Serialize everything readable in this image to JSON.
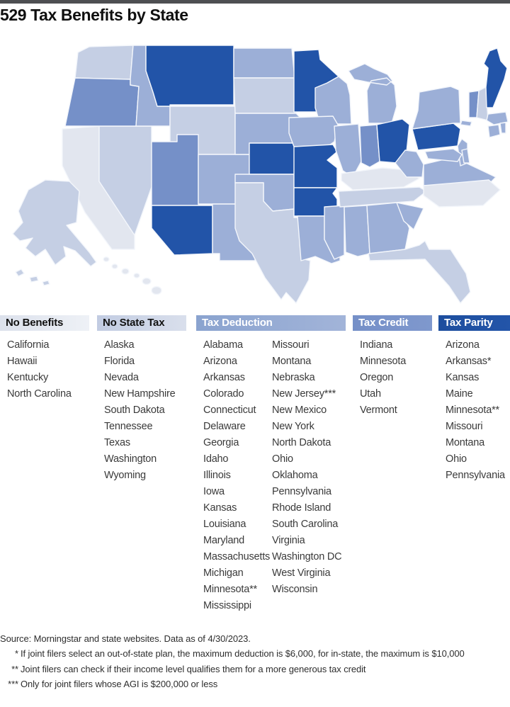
{
  "title": "529 Tax Benefits by State",
  "legend_columns": [
    {
      "key": "no_benefits",
      "label": "No Benefits",
      "header_bg": "#dce1ec",
      "header_bg2": "#eef1f6",
      "header_text": "#111111",
      "states": [
        "California",
        "Hawaii",
        "Kentucky",
        "North Carolina"
      ]
    },
    {
      "key": "no_state_tax",
      "label": "No State Tax",
      "header_bg": "#c2cce2",
      "header_bg2": "#d9dfec",
      "header_text": "#111111",
      "states": [
        "Alaska",
        "Florida",
        "Nevada",
        "New Hampshire",
        "South Dakota",
        "Tennessee",
        "Texas",
        "Washington",
        "Wyoming"
      ]
    },
    {
      "key": "tax_deduction",
      "label": "Tax Deduction",
      "header_bg": "#8aa3cf",
      "header_bg2": "#a2b4d9",
      "header_text": "#ffffff",
      "states_col1": [
        "Alabama",
        "Arizona",
        "Arkansas",
        "Colorado",
        "Connecticut",
        "Delaware",
        "Georgia",
        "Idaho",
        "Illinois",
        "Iowa",
        "Kansas",
        "Louisiana",
        "Maryland",
        "Massachusetts",
        "Michigan",
        "Minnesota**",
        "Mississippi"
      ],
      "states_col2": [
        "Missouri",
        "Montana",
        "Nebraska",
        "New Jersey***",
        "New Mexico",
        "New York",
        "North Dakota",
        "Ohio",
        "Oklahoma",
        "Pennsylvania",
        "Rhode Island",
        "South Carolina",
        "Virginia",
        "Washington DC",
        "West Virginia",
        "Wisconsin"
      ]
    },
    {
      "key": "tax_credit",
      "label": "Tax Credit",
      "header_bg": "#7590c8",
      "header_bg2": "#7f98cd",
      "header_text": "#ffffff",
      "states": [
        "Indiana",
        "Minnesota",
        "Oregon",
        "Utah",
        "Vermont"
      ]
    },
    {
      "key": "tax_parity",
      "label": "Tax Parity",
      "header_bg": "#1d4e9e",
      "header_bg2": "#2355a9",
      "header_text": "#ffffff",
      "states": [
        "Arizona",
        "Arkansas*",
        "Kansas",
        "Maine",
        "Minnesota**",
        "Missouri",
        "Montana",
        "Ohio",
        "Pennsylvania"
      ]
    }
  ],
  "map": {
    "colors": {
      "no_benefits": "#e2e6ef",
      "no_state_tax": "#c5cfe4",
      "tax_deduction": "#9cafd7",
      "tax_credit": "#7590c8",
      "tax_parity": "#2254a8"
    },
    "states": {
      "WA": "no_state_tax",
      "OR": "tax_credit",
      "CA": "no_benefits",
      "NV": "no_state_tax",
      "ID": "tax_deduction",
      "MT": "tax_parity",
      "WY": "no_state_tax",
      "UT": "tax_credit",
      "CO": "tax_deduction",
      "AZ": "tax_parity",
      "NM": "tax_deduction",
      "ND": "tax_deduction",
      "SD": "no_state_tax",
      "NE": "tax_deduction",
      "KS": "tax_parity",
      "OK": "tax_deduction",
      "TX": "no_state_tax",
      "MN": "tax_parity",
      "IA": "tax_deduction",
      "MO": "tax_parity",
      "AR": "tax_parity",
      "LA": "tax_deduction",
      "MS": "tax_deduction",
      "WI": "tax_deduction",
      "IL": "tax_deduction",
      "MI": "tax_deduction",
      "IN": "tax_credit",
      "OH": "tax_parity",
      "KY": "no_benefits",
      "TN": "no_state_tax",
      "AL": "tax_deduction",
      "GA": "tax_deduction",
      "SC": "tax_deduction",
      "FL": "no_state_tax",
      "NC": "no_benefits",
      "VA": "tax_deduction",
      "WV": "tax_deduction",
      "PA": "tax_parity",
      "NY": "tax_deduction",
      "NJ": "tax_deduction",
      "MD": "tax_deduction",
      "DE": "tax_deduction",
      "VT": "tax_credit",
      "NH": "no_state_tax",
      "ME": "tax_parity",
      "MA": "tax_deduction",
      "CT": "tax_deduction",
      "RI": "tax_deduction",
      "AK": "no_state_tax",
      "HI": "no_benefits"
    }
  },
  "footnotes": [
    {
      "marker": "",
      "text": "Source: Morningstar and state websites. Data as of 4/30/2023."
    },
    {
      "marker": "*",
      "text": "If joint filers select an out-of-state plan, the maximum deduction is $6,000, for in-state, the maximum is $10,000"
    },
    {
      "marker": "**",
      "text": "Joint filers can check if their income level qualifies them for a more generous tax credit"
    },
    {
      "marker": "***",
      "text": "Only for joint filers whose AGI is $200,000 or less"
    }
  ]
}
